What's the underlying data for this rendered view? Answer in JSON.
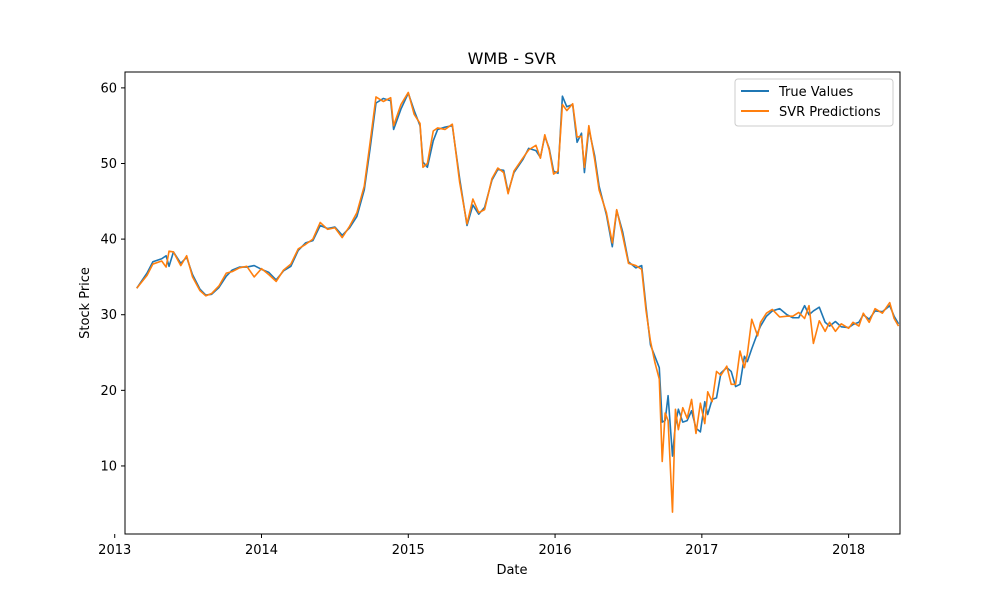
{
  "chart_data": {
    "type": "line",
    "title": "WMB - SVR",
    "xlabel": "Date",
    "ylabel": "Stock Price",
    "xlim": [
      2013.07,
      2018.35
    ],
    "ylim": [
      1.0,
      62.1
    ],
    "grid": false,
    "legend_position": "top-right",
    "x_ticks": [
      2013,
      2014,
      2015,
      2016,
      2017,
      2018
    ],
    "y_ticks": [
      10,
      20,
      30,
      40,
      50,
      60
    ],
    "series": [
      {
        "name": "True Values",
        "color": "#1f77b4",
        "points": [
          [
            2013.15,
            33.5
          ],
          [
            2013.22,
            35.5
          ],
          [
            2013.26,
            37.0
          ],
          [
            2013.32,
            37.4
          ],
          [
            2013.35,
            37.8
          ],
          [
            2013.37,
            36.4
          ],
          [
            2013.4,
            38.3
          ],
          [
            2013.45,
            36.8
          ],
          [
            2013.49,
            37.6
          ],
          [
            2013.53,
            35.3
          ],
          [
            2013.58,
            33.4
          ],
          [
            2013.62,
            32.6
          ],
          [
            2013.66,
            32.7
          ],
          [
            2013.71,
            33.6
          ],
          [
            2013.76,
            35.1
          ],
          [
            2013.8,
            35.9
          ],
          [
            2013.85,
            36.3
          ],
          [
            2013.9,
            36.3
          ],
          [
            2013.95,
            36.5
          ],
          [
            2014.0,
            36.0
          ],
          [
            2014.05,
            35.6
          ],
          [
            2014.1,
            34.6
          ],
          [
            2014.15,
            35.8
          ],
          [
            2014.2,
            36.4
          ],
          [
            2014.25,
            38.5
          ],
          [
            2014.3,
            39.5
          ],
          [
            2014.35,
            39.8
          ],
          [
            2014.4,
            41.8
          ],
          [
            2014.45,
            41.4
          ],
          [
            2014.5,
            41.6
          ],
          [
            2014.55,
            40.5
          ],
          [
            2014.6,
            41.5
          ],
          [
            2014.65,
            43.0
          ],
          [
            2014.7,
            46.5
          ],
          [
            2014.74,
            52.0
          ],
          [
            2014.78,
            58.0
          ],
          [
            2014.83,
            58.6
          ],
          [
            2014.88,
            58.3
          ],
          [
            2014.9,
            54.5
          ],
          [
            2014.95,
            57.2
          ],
          [
            2015.0,
            59.3
          ],
          [
            2015.04,
            57.0
          ],
          [
            2015.08,
            55.0
          ],
          [
            2015.1,
            50.2
          ],
          [
            2015.13,
            49.5
          ],
          [
            2015.17,
            53.0
          ],
          [
            2015.2,
            54.5
          ],
          [
            2015.25,
            54.8
          ],
          [
            2015.3,
            55.0
          ],
          [
            2015.35,
            48.0
          ],
          [
            2015.4,
            41.8
          ],
          [
            2015.44,
            44.5
          ],
          [
            2015.48,
            43.3
          ],
          [
            2015.52,
            44.2
          ],
          [
            2015.57,
            47.8
          ],
          [
            2015.61,
            49.2
          ],
          [
            2015.65,
            49.1
          ],
          [
            2015.68,
            46.2
          ],
          [
            2015.72,
            48.8
          ],
          [
            2015.78,
            50.5
          ],
          [
            2015.82,
            52.0
          ],
          [
            2015.87,
            51.7
          ],
          [
            2015.9,
            50.8
          ],
          [
            2015.93,
            53.6
          ],
          [
            2015.96,
            52.0
          ],
          [
            2015.99,
            49.0
          ],
          [
            2016.02,
            48.7
          ],
          [
            2016.05,
            58.9
          ],
          [
            2016.08,
            57.5
          ],
          [
            2016.12,
            57.8
          ],
          [
            2016.15,
            52.8
          ],
          [
            2016.18,
            54.0
          ],
          [
            2016.2,
            48.8
          ],
          [
            2016.23,
            54.6
          ],
          [
            2016.27,
            51.0
          ],
          [
            2016.3,
            47.0
          ],
          [
            2016.35,
            43.2
          ],
          [
            2016.39,
            39.0
          ],
          [
            2016.42,
            43.8
          ],
          [
            2016.46,
            41.0
          ],
          [
            2016.5,
            37.0
          ],
          [
            2016.55,
            36.2
          ],
          [
            2016.59,
            36.5
          ],
          [
            2016.62,
            31.0
          ],
          [
            2016.65,
            26.0
          ],
          [
            2016.68,
            24.5
          ],
          [
            2016.71,
            23.0
          ],
          [
            2016.73,
            15.8
          ],
          [
            2016.75,
            16.0
          ],
          [
            2016.77,
            19.3
          ],
          [
            2016.8,
            11.3
          ],
          [
            2016.82,
            15.5
          ],
          [
            2016.84,
            17.5
          ],
          [
            2016.87,
            15.8
          ],
          [
            2016.9,
            16.0
          ],
          [
            2016.93,
            17.3
          ],
          [
            2016.96,
            15.0
          ],
          [
            2016.99,
            14.5
          ],
          [
            2017.02,
            18.5
          ],
          [
            2017.04,
            16.8
          ],
          [
            2017.07,
            18.8
          ],
          [
            2017.1,
            19.0
          ],
          [
            2017.13,
            22.3
          ],
          [
            2017.17,
            23.0
          ],
          [
            2017.2,
            22.5
          ],
          [
            2017.23,
            20.5
          ],
          [
            2017.26,
            20.8
          ],
          [
            2017.29,
            24.5
          ],
          [
            2017.31,
            23.8
          ],
          [
            2017.34,
            25.5
          ],
          [
            2017.38,
            27.6
          ],
          [
            2017.4,
            28.5
          ],
          [
            2017.44,
            29.8
          ],
          [
            2017.48,
            30.5
          ],
          [
            2017.53,
            30.8
          ],
          [
            2017.58,
            30.0
          ],
          [
            2017.62,
            29.6
          ],
          [
            2017.66,
            29.6
          ],
          [
            2017.7,
            31.2
          ],
          [
            2017.73,
            30.0
          ],
          [
            2017.76,
            30.5
          ],
          [
            2017.8,
            31.0
          ],
          [
            2017.84,
            29.0
          ],
          [
            2017.87,
            28.5
          ],
          [
            2017.91,
            29.1
          ],
          [
            2017.95,
            28.4
          ],
          [
            2018.0,
            28.3
          ],
          [
            2018.03,
            28.7
          ],
          [
            2018.07,
            29.0
          ],
          [
            2018.1,
            30.0
          ],
          [
            2018.14,
            29.4
          ],
          [
            2018.18,
            30.5
          ],
          [
            2018.23,
            30.4
          ],
          [
            2018.28,
            31.2
          ],
          [
            2018.31,
            29.8
          ],
          [
            2018.34,
            28.8
          ]
        ]
      },
      {
        "name": "SVR Predictions",
        "color": "#ff7f0e",
        "points": [
          [
            2013.15,
            33.5
          ],
          [
            2013.22,
            35.2
          ],
          [
            2013.26,
            36.7
          ],
          [
            2013.32,
            37.1
          ],
          [
            2013.35,
            36.3
          ],
          [
            2013.37,
            38.4
          ],
          [
            2013.4,
            38.3
          ],
          [
            2013.45,
            36.5
          ],
          [
            2013.49,
            37.8
          ],
          [
            2013.53,
            35.0
          ],
          [
            2013.58,
            33.2
          ],
          [
            2013.62,
            32.5
          ],
          [
            2013.66,
            32.8
          ],
          [
            2013.71,
            33.8
          ],
          [
            2013.76,
            35.5
          ],
          [
            2013.8,
            35.7
          ],
          [
            2013.85,
            36.2
          ],
          [
            2013.9,
            36.4
          ],
          [
            2013.95,
            35.0
          ],
          [
            2014.0,
            36.1
          ],
          [
            2014.05,
            35.3
          ],
          [
            2014.1,
            34.4
          ],
          [
            2014.15,
            35.9
          ],
          [
            2014.2,
            36.7
          ],
          [
            2014.25,
            38.7
          ],
          [
            2014.3,
            39.3
          ],
          [
            2014.35,
            40.0
          ],
          [
            2014.4,
            42.2
          ],
          [
            2014.45,
            41.3
          ],
          [
            2014.5,
            41.5
          ],
          [
            2014.55,
            40.2
          ],
          [
            2014.6,
            41.7
          ],
          [
            2014.65,
            43.5
          ],
          [
            2014.7,
            47.0
          ],
          [
            2014.74,
            52.8
          ],
          [
            2014.78,
            58.8
          ],
          [
            2014.83,
            58.2
          ],
          [
            2014.88,
            58.7
          ],
          [
            2014.9,
            55.0
          ],
          [
            2014.95,
            57.8
          ],
          [
            2015.0,
            59.4
          ],
          [
            2015.04,
            56.5
          ],
          [
            2015.08,
            55.3
          ],
          [
            2015.1,
            49.5
          ],
          [
            2015.13,
            50.0
          ],
          [
            2015.17,
            54.3
          ],
          [
            2015.2,
            54.7
          ],
          [
            2015.25,
            54.5
          ],
          [
            2015.3,
            55.2
          ],
          [
            2015.35,
            47.5
          ],
          [
            2015.4,
            42.0
          ],
          [
            2015.44,
            45.3
          ],
          [
            2015.48,
            43.5
          ],
          [
            2015.52,
            43.9
          ],
          [
            2015.57,
            48.0
          ],
          [
            2015.61,
            49.4
          ],
          [
            2015.65,
            48.8
          ],
          [
            2015.68,
            46.0
          ],
          [
            2015.72,
            49.0
          ],
          [
            2015.78,
            50.7
          ],
          [
            2015.82,
            51.8
          ],
          [
            2015.87,
            52.4
          ],
          [
            2015.9,
            50.7
          ],
          [
            2015.93,
            53.8
          ],
          [
            2015.96,
            51.8
          ],
          [
            2015.99,
            48.6
          ],
          [
            2016.02,
            49.0
          ],
          [
            2016.05,
            57.8
          ],
          [
            2016.08,
            57.0
          ],
          [
            2016.12,
            57.9
          ],
          [
            2016.15,
            53.5
          ],
          [
            2016.18,
            53.6
          ],
          [
            2016.2,
            49.5
          ],
          [
            2016.23,
            55.0
          ],
          [
            2016.27,
            50.5
          ],
          [
            2016.3,
            46.5
          ],
          [
            2016.35,
            43.5
          ],
          [
            2016.39,
            39.5
          ],
          [
            2016.42,
            43.9
          ],
          [
            2016.46,
            40.5
          ],
          [
            2016.5,
            36.8
          ],
          [
            2016.55,
            36.5
          ],
          [
            2016.59,
            36.0
          ],
          [
            2016.62,
            30.5
          ],
          [
            2016.65,
            26.5
          ],
          [
            2016.68,
            23.7
          ],
          [
            2016.71,
            21.5
          ],
          [
            2016.73,
            10.6
          ],
          [
            2016.75,
            17.0
          ],
          [
            2016.77,
            16.0
          ],
          [
            2016.8,
            3.9
          ],
          [
            2016.82,
            17.5
          ],
          [
            2016.84,
            14.8
          ],
          [
            2016.87,
            17.7
          ],
          [
            2016.9,
            16.3
          ],
          [
            2016.93,
            18.8
          ],
          [
            2016.96,
            14.3
          ],
          [
            2016.99,
            18.3
          ],
          [
            2017.02,
            15.6
          ],
          [
            2017.04,
            19.8
          ],
          [
            2017.07,
            18.5
          ],
          [
            2017.1,
            22.5
          ],
          [
            2017.13,
            22.0
          ],
          [
            2017.17,
            23.2
          ],
          [
            2017.2,
            20.8
          ],
          [
            2017.23,
            20.8
          ],
          [
            2017.26,
            25.2
          ],
          [
            2017.29,
            23.0
          ],
          [
            2017.31,
            24.8
          ],
          [
            2017.34,
            29.4
          ],
          [
            2017.38,
            27.2
          ],
          [
            2017.4,
            29.0
          ],
          [
            2017.44,
            30.2
          ],
          [
            2017.48,
            30.7
          ],
          [
            2017.53,
            29.7
          ],
          [
            2017.58,
            29.8
          ],
          [
            2017.62,
            29.8
          ],
          [
            2017.66,
            30.3
          ],
          [
            2017.7,
            29.5
          ],
          [
            2017.73,
            31.2
          ],
          [
            2017.76,
            26.2
          ],
          [
            2017.8,
            29.2
          ],
          [
            2017.84,
            27.8
          ],
          [
            2017.87,
            29.0
          ],
          [
            2017.91,
            27.8
          ],
          [
            2017.95,
            28.8
          ],
          [
            2018.0,
            28.2
          ],
          [
            2018.03,
            29.0
          ],
          [
            2018.07,
            28.5
          ],
          [
            2018.1,
            30.2
          ],
          [
            2018.14,
            29.0
          ],
          [
            2018.18,
            30.8
          ],
          [
            2018.23,
            30.2
          ],
          [
            2018.28,
            31.6
          ],
          [
            2018.31,
            29.5
          ],
          [
            2018.34,
            28.5
          ]
        ]
      }
    ]
  }
}
